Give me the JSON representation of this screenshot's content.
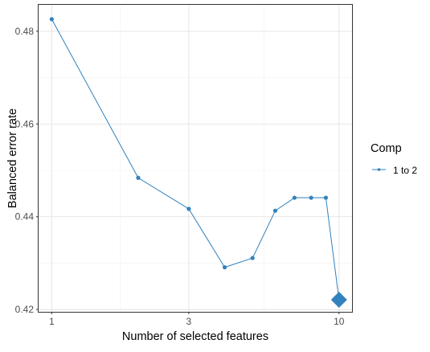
{
  "chart_data": {
    "type": "line",
    "xlabel": "Number of selected features",
    "ylabel": "Balanced error rate",
    "x_scale": "log",
    "xlim": [
      0.9,
      11.1
    ],
    "ylim": [
      0.4195,
      0.4857
    ],
    "x_ticks": [
      1,
      3,
      10
    ],
    "x_tick_labels": [
      "1",
      "3",
      "10"
    ],
    "y_ticks": [
      0.42,
      0.44,
      0.46,
      0.48
    ],
    "y_tick_labels": [
      "0.42",
      "0.44",
      "0.46",
      "0.48"
    ],
    "grid": true,
    "series": [
      {
        "name": "1 to 2",
        "color": "#3182bd",
        "x": [
          1,
          2,
          3,
          4,
          5,
          6,
          7,
          8,
          9,
          10
        ],
        "y": [
          0.4826,
          0.4484,
          0.4417,
          0.4291,
          0.4311,
          0.4413,
          0.4441,
          0.4441,
          0.4441,
          0.4221
        ]
      }
    ],
    "highlight": {
      "x": 10,
      "y": 0.4221,
      "marker": "diamond"
    },
    "legend": {
      "title": "Comp",
      "position": "right"
    }
  }
}
